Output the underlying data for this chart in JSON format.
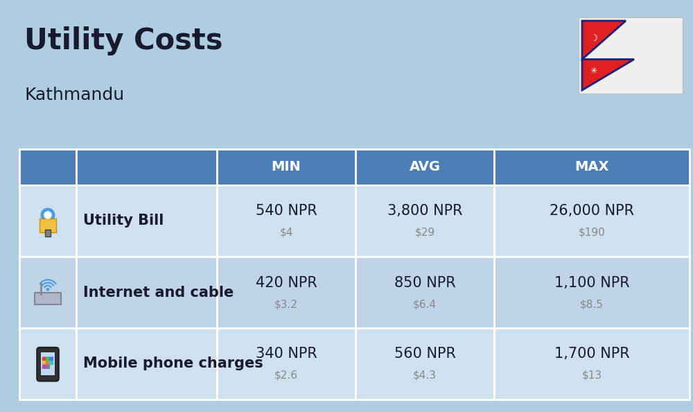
{
  "title": "Utility Costs",
  "subtitle": "Kathmandu",
  "background_color": "#aecde0",
  "header_color": "#4a7eb5",
  "header_text_color": "#ffffff",
  "row_color_odd": "#cfe0ef",
  "row_color_even": "#bfd4e8",
  "icon_col_bg": "#aecde0",
  "table_border_color": "#ffffff",
  "rows": [
    {
      "label": "Utility Bill",
      "min_npr": "540 NPR",
      "min_usd": "$4",
      "avg_npr": "3,800 NPR",
      "avg_usd": "$29",
      "max_npr": "26,000 NPR",
      "max_usd": "$190"
    },
    {
      "label": "Internet and cable",
      "min_npr": "420 NPR",
      "min_usd": "$3.2",
      "avg_npr": "850 NPR",
      "avg_usd": "$6.4",
      "max_npr": "1,100 NPR",
      "max_usd": "$8.5"
    },
    {
      "label": "Mobile phone charges",
      "min_npr": "340 NPR",
      "min_usd": "$2.6",
      "avg_npr": "560 NPR",
      "avg_usd": "$4.3",
      "max_npr": "1,700 NPR",
      "max_usd": "$13"
    }
  ],
  "npr_fontsize": 15,
  "usd_fontsize": 11,
  "label_fontsize": 15,
  "header_fontsize": 14,
  "title_fontsize": 30,
  "subtitle_fontsize": 18,
  "text_color": "#1a1a2e",
  "usd_color": "#888888"
}
